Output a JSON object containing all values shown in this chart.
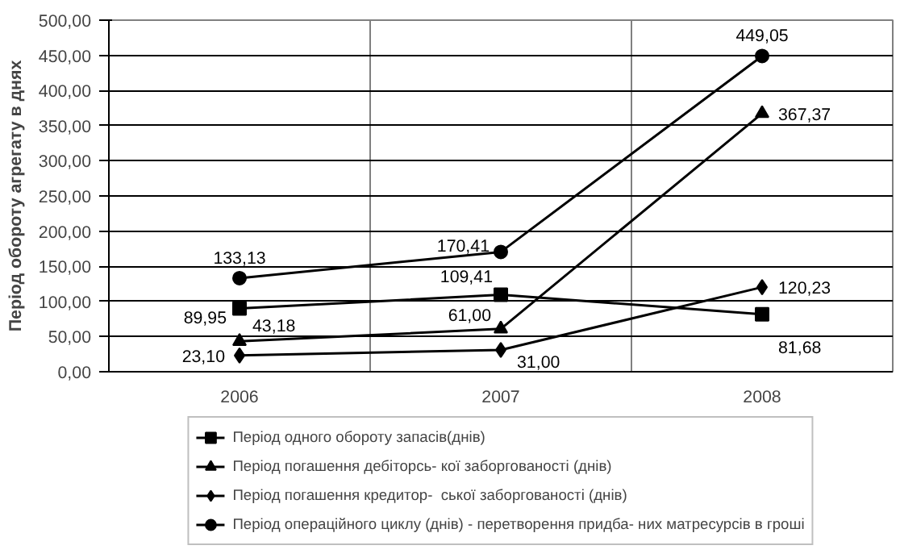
{
  "chart_data": {
    "type": "line",
    "ylabel": "Період обороту агрегату в днях",
    "categories": [
      "2006",
      "2007",
      "2008"
    ],
    "ylim": [
      0,
      500
    ],
    "yticks": [
      {
        "value": 0,
        "label": "0,00"
      },
      {
        "value": 50,
        "label": "50,00"
      },
      {
        "value": 100,
        "label": "100,00"
      },
      {
        "value": 150,
        "label": "150,00"
      },
      {
        "value": 200,
        "label": "200,00"
      },
      {
        "value": 250,
        "label": "250,00"
      },
      {
        "value": 300,
        "label": "300,00"
      },
      {
        "value": 350,
        "label": "350,00"
      },
      {
        "value": 400,
        "label": "400,00"
      },
      {
        "value": 450,
        "label": "450,00"
      },
      {
        "value": 500,
        "label": "500,00"
      }
    ],
    "grid": true,
    "legend": "bottom",
    "line_style": "solid",
    "series": [
      {
        "name": "Період одного обороту запасів(днів)",
        "color": "#000000",
        "marker": "square",
        "values": [
          89.95,
          109.41,
          81.68
        ],
        "value_labels": [
          "89,95",
          "109,41",
          "81,68"
        ]
      },
      {
        "name": "Період погашення дебіторсь- кої заборгованості (днів)",
        "color": "#000000",
        "marker": "triangle",
        "values": [
          43.18,
          61.0,
          367.37
        ],
        "value_labels": [
          "43,18",
          "61,00",
          "367,37"
        ]
      },
      {
        "name": "Період погашення кредитор-  ської заборгованості (днів)",
        "color": "#000000",
        "marker": "diamond",
        "values": [
          23.1,
          31.0,
          120.23
        ],
        "value_labels": [
          "23,10",
          "31,00",
          "120,23"
        ]
      },
      {
        "name": "Період операційного циклу (днів) - перетворення придба- них матресурсів в гроші",
        "color": "#000000",
        "marker": "circle",
        "values": [
          133.13,
          170.41,
          449.05
        ],
        "value_labels": [
          "133,13",
          "170,41",
          "449,05"
        ]
      }
    ]
  }
}
